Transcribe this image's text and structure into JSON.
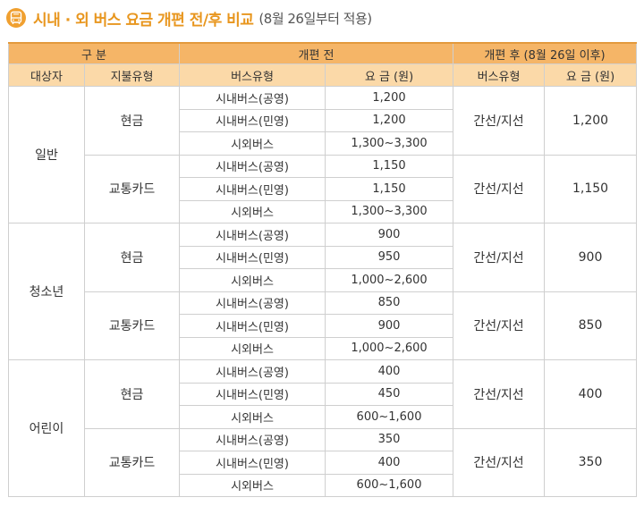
{
  "title": {
    "main": "시내 · 외 버스 요금 개편 전/후 비교",
    "sub": "(8월 26일부터 적용)",
    "icon": "bus-icon",
    "accent": "#e8961e"
  },
  "table": {
    "header_top": {
      "category": "구 분",
      "before": "개편 전",
      "after": "개편 후 (8월 26일 이후)"
    },
    "header_sub": {
      "target": "대상자",
      "payment": "지불유형",
      "bus_type_before": "버스유형",
      "fare_before": "요 금 (원)",
      "bus_type_after": "버스유형",
      "fare_after": "요 금 (원)"
    },
    "groups": [
      {
        "target": "일반",
        "payments": [
          {
            "payment": "현금",
            "rows": [
              {
                "bus": "시내버스(공영)",
                "fare": "1,200"
              },
              {
                "bus": "시내버스(민영)",
                "fare": "1,200"
              },
              {
                "bus": "시외버스",
                "fare": "1,300~3,300"
              }
            ],
            "after_bus": "간선/지선",
            "after_fare": "1,200"
          },
          {
            "payment": "교통카드",
            "rows": [
              {
                "bus": "시내버스(공영)",
                "fare": "1,150"
              },
              {
                "bus": "시내버스(민영)",
                "fare": "1,150"
              },
              {
                "bus": "시외버스",
                "fare": "1,300~3,300"
              }
            ],
            "after_bus": "간선/지선",
            "after_fare": "1,150"
          }
        ]
      },
      {
        "target": "청소년",
        "payments": [
          {
            "payment": "현금",
            "rows": [
              {
                "bus": "시내버스(공영)",
                "fare": "900"
              },
              {
                "bus": "시내버스(민영)",
                "fare": "950"
              },
              {
                "bus": "시외버스",
                "fare": "1,000~2,600"
              }
            ],
            "after_bus": "간선/지선",
            "after_fare": "900"
          },
          {
            "payment": "교통카드",
            "rows": [
              {
                "bus": "시내버스(공영)",
                "fare": "850"
              },
              {
                "bus": "시내버스(민영)",
                "fare": "900"
              },
              {
                "bus": "시외버스",
                "fare": "1,000~2,600"
              }
            ],
            "after_bus": "간선/지선",
            "after_fare": "850"
          }
        ]
      },
      {
        "target": "어린이",
        "payments": [
          {
            "payment": "현금",
            "rows": [
              {
                "bus": "시내버스(공영)",
                "fare": "400"
              },
              {
                "bus": "시내버스(민영)",
                "fare": "450"
              },
              {
                "bus": "시외버스",
                "fare": "600~1,600"
              }
            ],
            "after_bus": "간선/지선",
            "after_fare": "400"
          },
          {
            "payment": "교통카드",
            "rows": [
              {
                "bus": "시내버스(공영)",
                "fare": "350"
              },
              {
                "bus": "시내버스(민영)",
                "fare": "400"
              },
              {
                "bus": "시외버스",
                "fare": "600~1,600"
              }
            ],
            "after_bus": "간선/지선",
            "after_fare": "350"
          }
        ]
      }
    ]
  }
}
